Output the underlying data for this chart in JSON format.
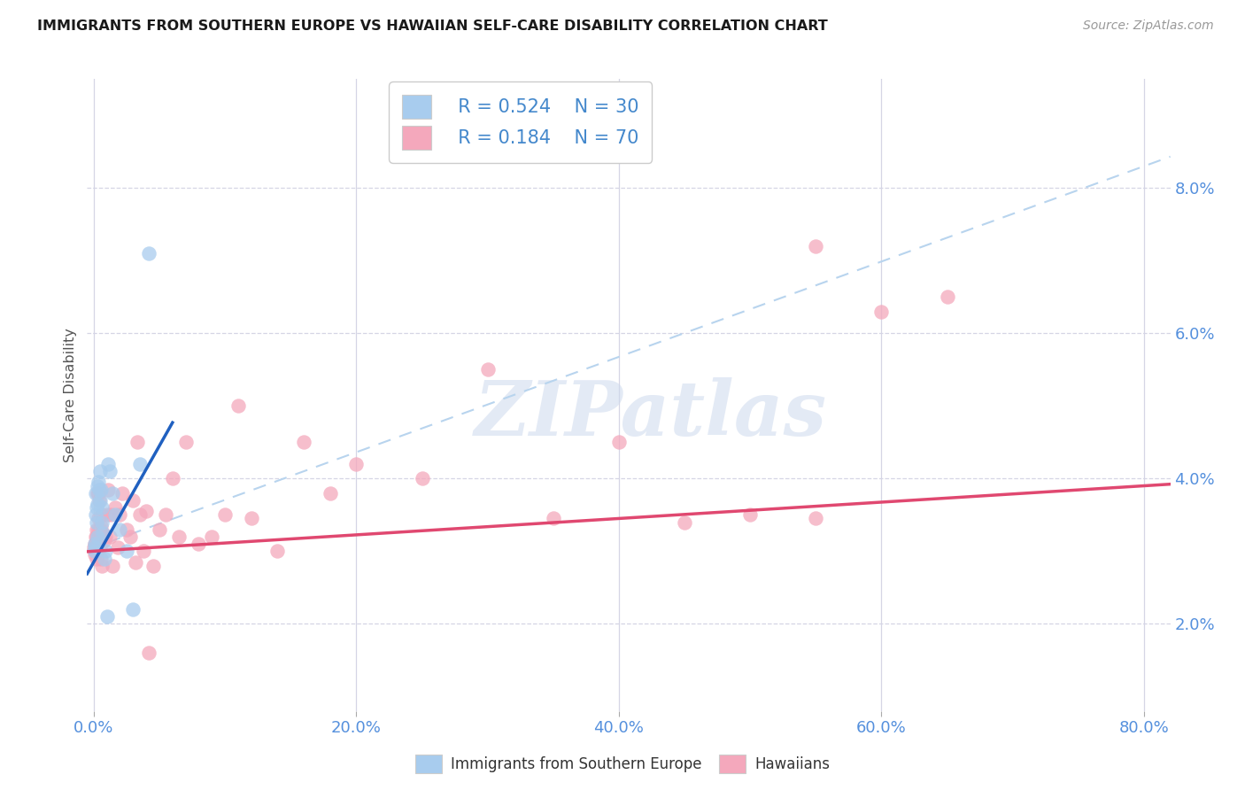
{
  "title": "IMMIGRANTS FROM SOUTHERN EUROPE VS HAWAIIAN SELF-CARE DISABILITY CORRELATION CHART",
  "source": "Source: ZipAtlas.com",
  "ylabel": "Self-Care Disability",
  "x_tick_vals": [
    0.0,
    20.0,
    40.0,
    60.0,
    80.0
  ],
  "y_tick_vals": [
    2.0,
    4.0,
    6.0,
    8.0
  ],
  "xlim": [
    -0.5,
    82.0
  ],
  "ylim": [
    0.8,
    9.5
  ],
  "legend_labels": [
    "Immigrants from Southern Europe",
    "Hawaiians"
  ],
  "legend_r": [
    "0.524",
    "0.184"
  ],
  "legend_n": [
    "30",
    "70"
  ],
  "blue_color": "#a8ccee",
  "pink_color": "#f4a8bc",
  "blue_line_color": "#2060c0",
  "pink_line_color": "#e04870",
  "dashed_line_color": "#b8d4ee",
  "watermark_color": "#cdd9ed",
  "blue_line_x0": 0.0,
  "blue_line_y0": 2.85,
  "blue_line_x1": 5.0,
  "blue_line_y1": 4.45,
  "pink_line_x0": 0.0,
  "pink_line_y0": 3.0,
  "pink_line_x1": 80.0,
  "pink_line_y1": 3.9,
  "dashed_x0": 0.0,
  "dashed_y0": 3.05,
  "dashed_x1": 80.0,
  "dashed_y1": 8.3,
  "blue_x": [
    0.05,
    0.08,
    0.1,
    0.12,
    0.15,
    0.18,
    0.2,
    0.25,
    0.28,
    0.3,
    0.35,
    0.4,
    0.45,
    0.5,
    0.55,
    0.6,
    0.65,
    0.7,
    0.8,
    0.9,
    1.0,
    1.1,
    1.2,
    1.4,
    1.6,
    2.0,
    2.5,
    3.0,
    3.5,
    4.2
  ],
  "blue_y": [
    3.05,
    3.0,
    3.1,
    3.5,
    3.8,
    3.6,
    3.4,
    3.9,
    3.65,
    3.2,
    3.95,
    3.85,
    4.1,
    3.7,
    3.85,
    3.6,
    3.4,
    3.25,
    2.9,
    3.0,
    2.1,
    4.2,
    4.1,
    3.8,
    3.5,
    3.3,
    3.0,
    2.2,
    4.2,
    7.1
  ],
  "pink_x": [
    0.04,
    0.06,
    0.08,
    0.1,
    0.12,
    0.15,
    0.18,
    0.2,
    0.25,
    0.3,
    0.35,
    0.4,
    0.45,
    0.5,
    0.55,
    0.6,
    0.7,
    0.8,
    0.9,
    1.0,
    1.2,
    1.4,
    1.6,
    1.8,
    2.0,
    2.2,
    2.5,
    2.8,
    3.0,
    3.2,
    3.5,
    3.8,
    4.0,
    4.5,
    5.0,
    5.5,
    6.0,
    6.5,
    7.0,
    8.0,
    9.0,
    10.0,
    11.0,
    12.0,
    14.0,
    16.0,
    18.0,
    20.0,
    25.0,
    30.0,
    35.0,
    40.0,
    45.0,
    50.0,
    55.0,
    60.0,
    65.0,
    0.22,
    0.28,
    0.33,
    0.38,
    0.43,
    0.48,
    0.58,
    0.65,
    1.1,
    1.3,
    3.3,
    4.2,
    55.0
  ],
  "pink_y": [
    3.05,
    2.95,
    3.1,
    3.0,
    3.2,
    3.0,
    2.9,
    3.3,
    3.15,
    3.0,
    3.45,
    3.7,
    3.2,
    3.05,
    3.35,
    3.5,
    3.25,
    3.15,
    3.2,
    3.5,
    3.2,
    2.8,
    3.6,
    3.05,
    3.5,
    3.8,
    3.3,
    3.2,
    3.7,
    2.85,
    3.5,
    3.0,
    3.55,
    2.8,
    3.3,
    3.5,
    4.0,
    3.2,
    4.5,
    3.1,
    3.2,
    3.5,
    5.0,
    3.45,
    3.0,
    4.5,
    3.8,
    4.2,
    4.0,
    5.5,
    3.45,
    4.5,
    3.4,
    3.5,
    3.45,
    6.3,
    6.5,
    3.2,
    3.8,
    3.3,
    3.8,
    3.2,
    3.3,
    2.9,
    2.8,
    3.85,
    3.5,
    4.5,
    1.6,
    7.2
  ]
}
